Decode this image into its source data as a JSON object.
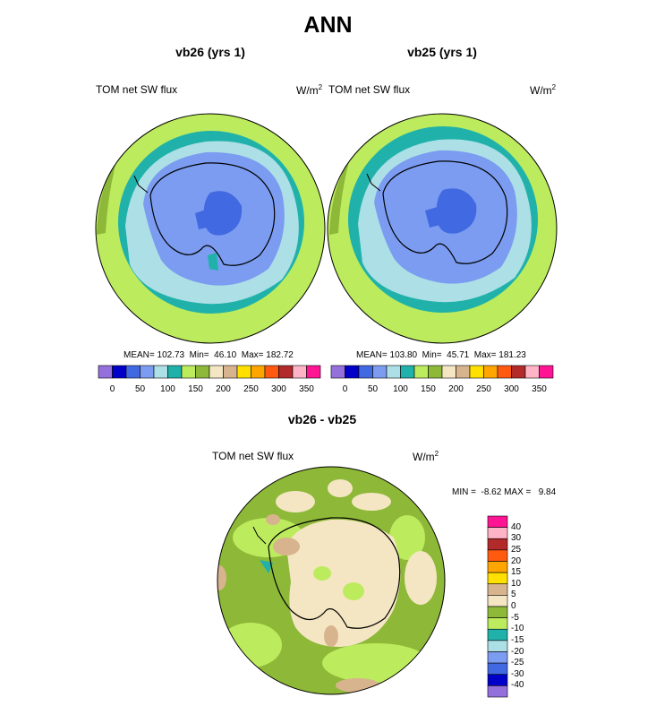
{
  "title": "ANN",
  "palette": {
    "purple": "#9370DB",
    "darkblue": "#0000C8",
    "blue": "#4169E1",
    "lightblue": "#7B9CF0",
    "paleblue": "#ADDFE6",
    "teal": "#20B2AA",
    "lightgreen": "#BDEB5E",
    "olive": "#8DB838",
    "beige": "#F5E6C3",
    "tan": "#D8B48E",
    "yellow": "#FFE000",
    "orange": "#FFA500",
    "orangered": "#FF5A10",
    "brown": "#B22A2A",
    "pink": "#FFB3C6",
    "magenta": "#FF1493"
  },
  "panels": [
    {
      "title": "vb26 (yrs 1)",
      "variable": "TOM net SW flux",
      "units": "W/m",
      "units_exp": "2",
      "stats": "MEAN= 102.73  Min=  46.10  Max= 182.72"
    },
    {
      "title": "vb25 (yrs 1)",
      "variable": "TOM net SW flux",
      "units": "W/m",
      "units_exp": "2",
      "stats": "MEAN= 103.80  Min=  45.71  Max= 181.23"
    }
  ],
  "colorbar_top": {
    "ticks": [
      "0",
      "50",
      "100",
      "150",
      "200",
      "250",
      "300",
      "350"
    ]
  },
  "diff_panel": {
    "title": "vb26 - vb25",
    "variable": "TOM net SW flux",
    "units": "W/m",
    "units_exp": "2",
    "stats": "MIN =  -8.62 MAX =   9.84"
  },
  "colorbar_diff": {
    "ticks": [
      "40",
      "30",
      "25",
      "20",
      "15",
      "10",
      "5",
      "0",
      "-5",
      "-10",
      "-15",
      "-20",
      "-25",
      "-30",
      "-40"
    ]
  }
}
